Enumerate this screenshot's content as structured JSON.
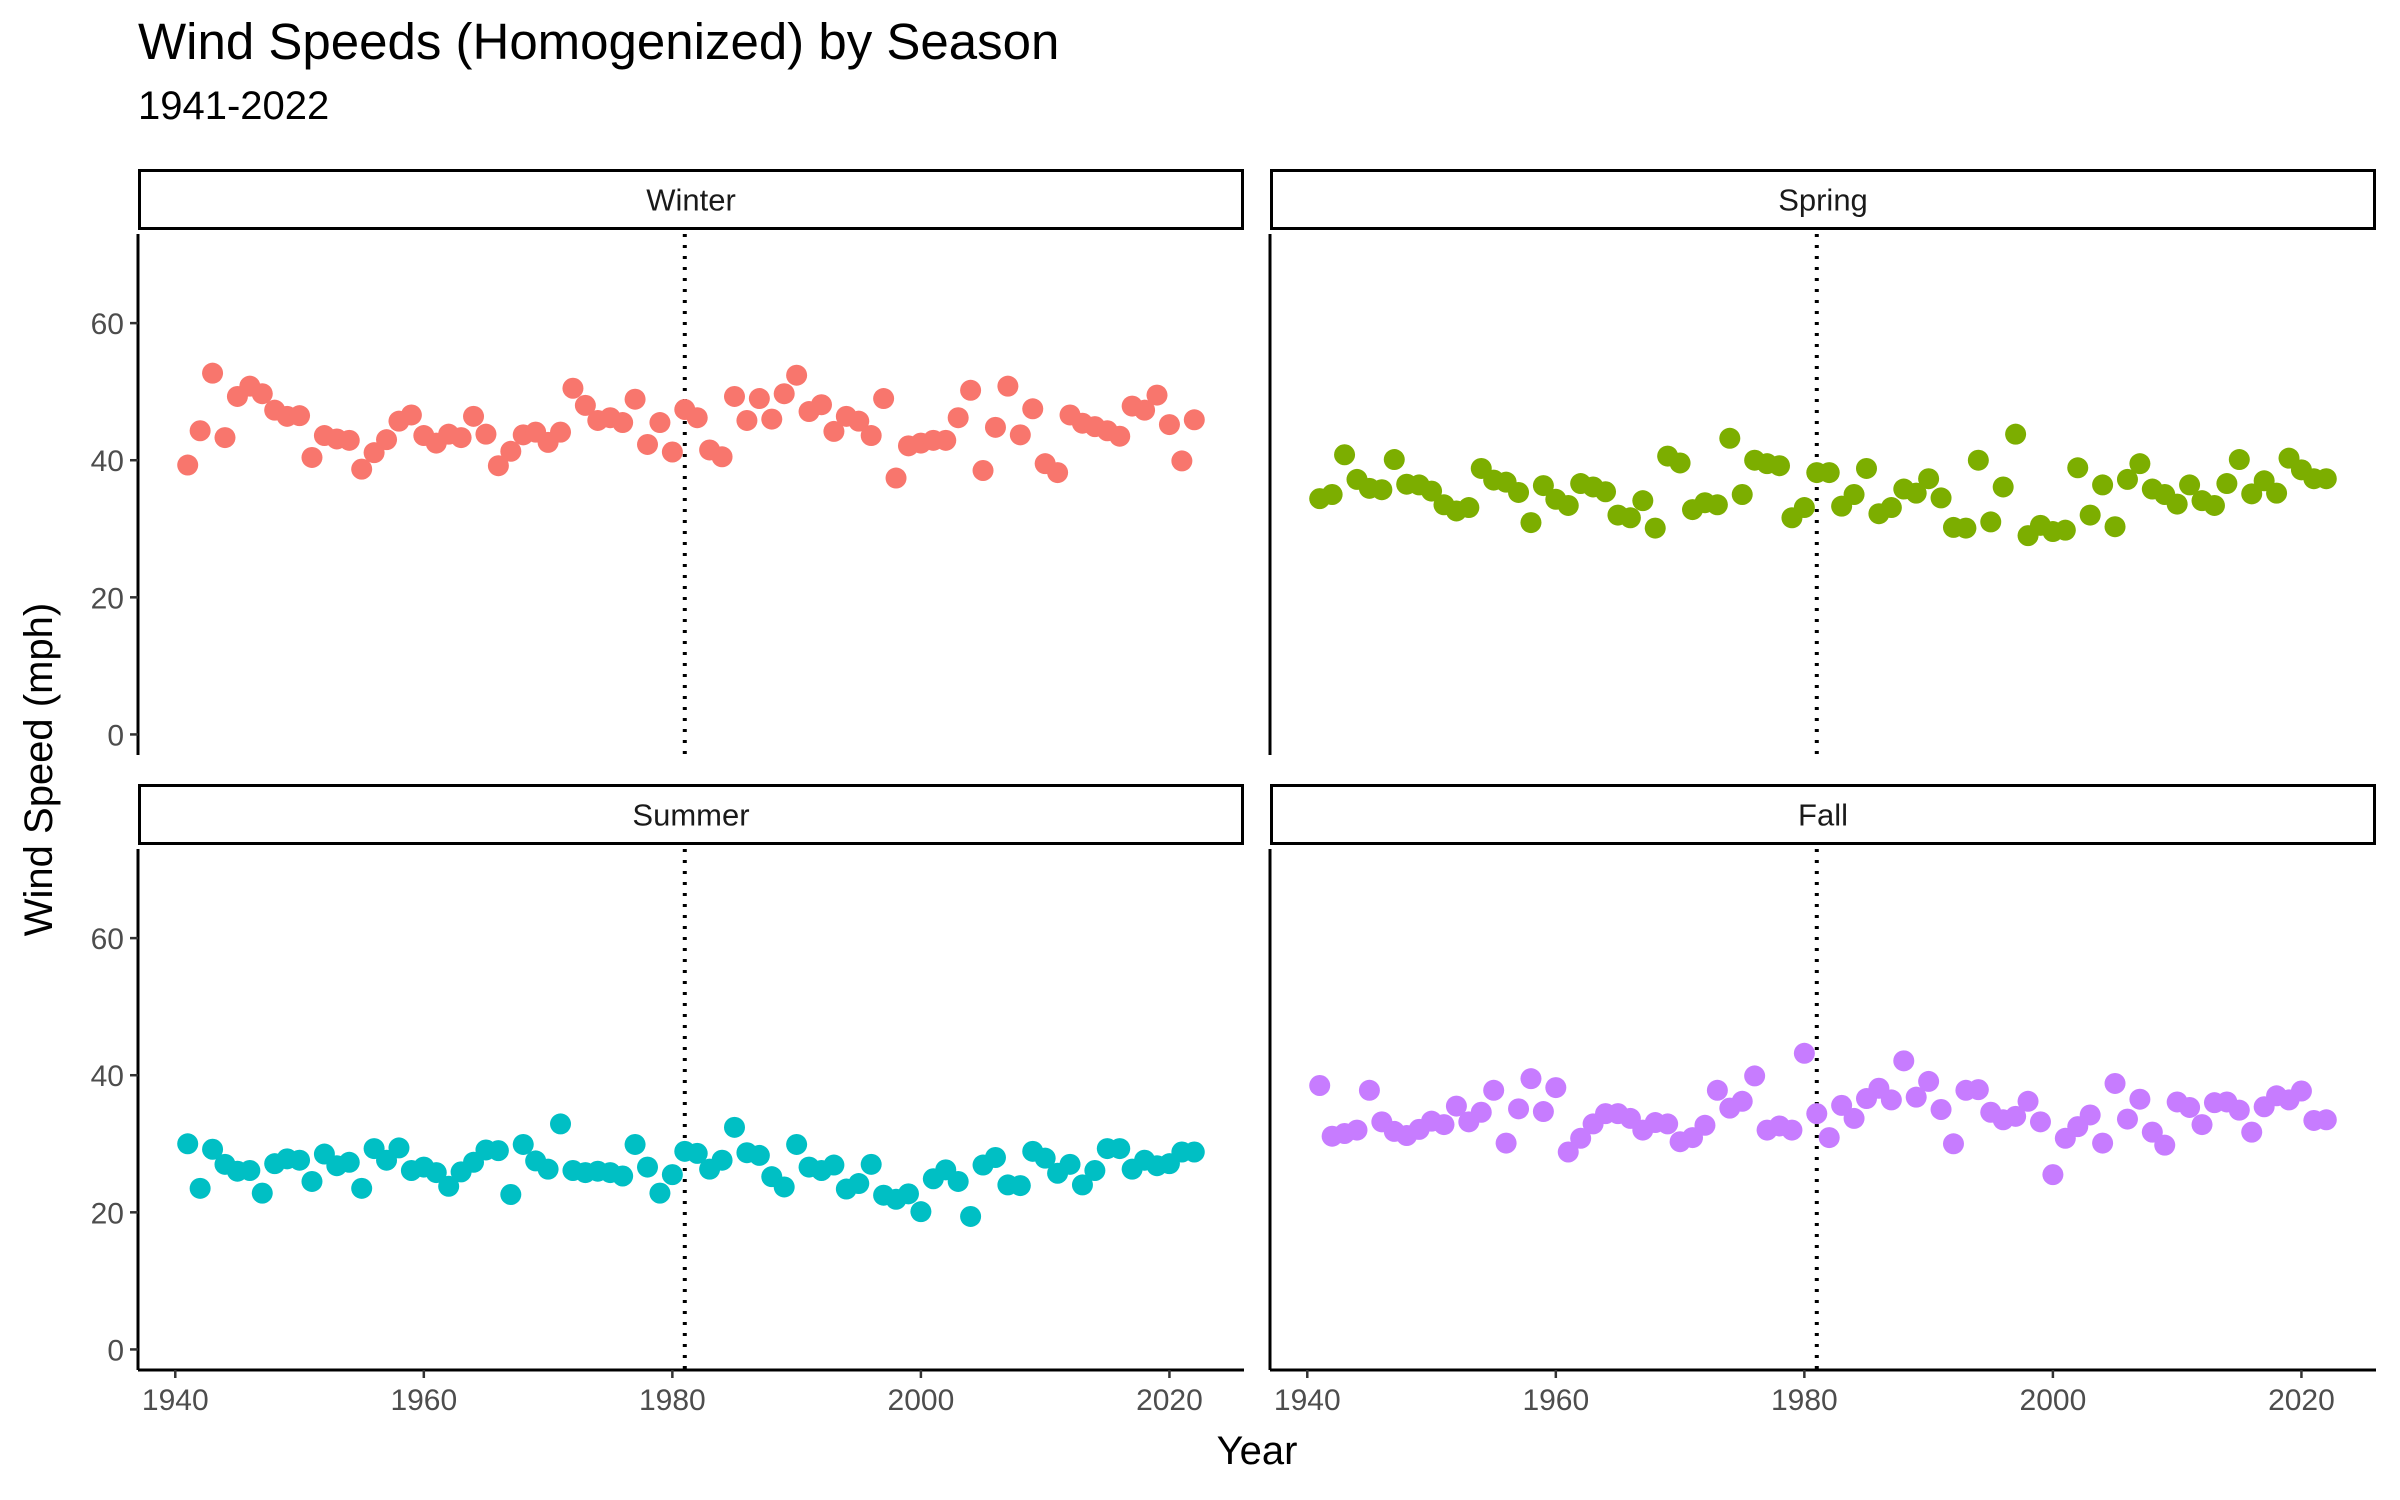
{
  "chart_data": {
    "type": "scatter",
    "title": "Wind Speeds (Homogenized) by Season",
    "subtitle": "1941-2022",
    "xlabel": "Year",
    "ylabel": "Wind Speed (mph)",
    "xlim": [
      1937,
      2026
    ],
    "ylim": [
      -3,
      73
    ],
    "x_ticks": [
      1940,
      1960,
      1980,
      2000,
      2020
    ],
    "y_ticks": [
      0,
      20,
      40,
      60
    ],
    "reference_line": {
      "x": 1981,
      "style": "dotted"
    },
    "grid": false,
    "legend": "none",
    "facets": [
      {
        "name": "Winter",
        "color": "#F8766D",
        "years": [
          1941,
          1942,
          1943,
          1944,
          1945,
          1946,
          1947,
          1948,
          1949,
          1950,
          1951,
          1952,
          1953,
          1954,
          1955,
          1956,
          1957,
          1958,
          1959,
          1960,
          1961,
          1962,
          1963,
          1964,
          1965,
          1966,
          1967,
          1968,
          1969,
          1970,
          1971,
          1972,
          1973,
          1974,
          1975,
          1976,
          1977,
          1978,
          1979,
          1980,
          1981,
          1982,
          1983,
          1984,
          1985,
          1986,
          1987,
          1988,
          1989,
          1990,
          1991,
          1992,
          1993,
          1994,
          1995,
          1996,
          1997,
          1998,
          1999,
          2000,
          2001,
          2002,
          2003,
          2004,
          2005,
          2006,
          2007,
          2008,
          2009,
          2010,
          2011,
          2012,
          2013,
          2014,
          2015,
          2016,
          2017,
          2018,
          2019,
          2020,
          2021,
          2022
        ],
        "values": [
          39.3,
          44.3,
          52.7,
          43.3,
          49.3,
          50.8,
          49.7,
          47.3,
          46.4,
          46.5,
          40.4,
          43.6,
          43.1,
          42.9,
          38.7,
          41.1,
          43.0,
          45.7,
          46.6,
          43.6,
          42.5,
          43.8,
          43.3,
          46.4,
          43.8,
          39.2,
          41.3,
          43.7,
          44.1,
          42.6,
          44.1,
          50.5,
          48.0,
          45.8,
          46.2,
          45.5,
          48.9,
          42.3,
          45.5,
          41.2,
          47.4,
          46.2,
          41.5,
          40.5,
          49.3,
          45.8,
          49.0,
          46.0,
          49.7,
          52.4,
          47.1,
          48.1,
          44.2,
          46.4,
          45.7,
          43.6,
          49.0,
          37.4,
          42.1,
          42.5,
          42.9,
          42.9,
          46.2,
          50.2,
          38.5,
          44.8,
          50.8,
          43.7,
          47.5,
          39.5,
          38.2,
          46.6,
          45.4,
          44.9,
          44.3,
          43.5,
          47.9,
          47.3,
          49.5,
          45.2,
          39.9,
          45.9
        ]
      },
      {
        "name": "Spring",
        "color": "#7CAE00",
        "years": [
          1941,
          1942,
          1943,
          1944,
          1945,
          1946,
          1947,
          1948,
          1949,
          1950,
          1951,
          1952,
          1953,
          1954,
          1955,
          1956,
          1957,
          1958,
          1959,
          1960,
          1961,
          1962,
          1963,
          1964,
          1965,
          1966,
          1967,
          1968,
          1969,
          1970,
          1971,
          1972,
          1973,
          1974,
          1975,
          1976,
          1977,
          1978,
          1979,
          1980,
          1981,
          1982,
          1983,
          1984,
          1985,
          1986,
          1987,
          1988,
          1989,
          1990,
          1991,
          1992,
          1993,
          1994,
          1995,
          1996,
          1997,
          1998,
          1999,
          2000,
          2001,
          2002,
          2003,
          2004,
          2005,
          2006,
          2007,
          2008,
          2009,
          2010,
          2011,
          2012,
          2013,
          2014,
          2015,
          2016,
          2017,
          2018,
          2019,
          2020,
          2021,
          2022
        ],
        "values": [
          34.4,
          35.0,
          40.8,
          37.2,
          35.9,
          35.7,
          40.1,
          36.5,
          36.4,
          35.5,
          33.5,
          32.6,
          33.1,
          38.8,
          37.1,
          36.8,
          35.3,
          30.9,
          36.3,
          34.3,
          33.4,
          36.6,
          36.1,
          35.4,
          32.0,
          31.6,
          34.1,
          30.1,
          40.6,
          39.6,
          32.8,
          33.8,
          33.5,
          43.2,
          35.0,
          40.0,
          39.5,
          39.2,
          31.6,
          33.1,
          38.2,
          38.2,
          33.3,
          35.0,
          38.8,
          32.2,
          33.1,
          35.8,
          35.2,
          37.3,
          34.5,
          30.2,
          30.1,
          40.0,
          31.0,
          36.1,
          43.8,
          29.0,
          30.5,
          29.6,
          29.8,
          38.9,
          32.0,
          36.4,
          30.3,
          37.2,
          39.5,
          35.8,
          35.0,
          33.6,
          36.4,
          34.1,
          33.4,
          36.6,
          40.1,
          35.1,
          37.0,
          35.2,
          40.3,
          38.6,
          37.3,
          37.3
        ]
      },
      {
        "name": "Summer",
        "color": "#00BFC4",
        "years": [
          1941,
          1942,
          1943,
          1944,
          1945,
          1946,
          1947,
          1948,
          1949,
          1950,
          1951,
          1952,
          1953,
          1954,
          1955,
          1956,
          1957,
          1958,
          1959,
          1960,
          1961,
          1962,
          1963,
          1964,
          1965,
          1966,
          1967,
          1968,
          1969,
          1970,
          1971,
          1972,
          1973,
          1974,
          1975,
          1976,
          1977,
          1978,
          1979,
          1980,
          1981,
          1982,
          1983,
          1984,
          1985,
          1986,
          1987,
          1988,
          1989,
          1990,
          1991,
          1992,
          1993,
          1994,
          1995,
          1996,
          1997,
          1998,
          1999,
          2000,
          2001,
          2002,
          2003,
          2004,
          2005,
          2006,
          2007,
          2008,
          2009,
          2010,
          2011,
          2012,
          2013,
          2014,
          2015,
          2016,
          2017,
          2018,
          2019,
          2020,
          2021,
          2022
        ],
        "values": [
          30.0,
          23.5,
          29.2,
          27.0,
          26.0,
          26.1,
          22.8,
          27.1,
          27.8,
          27.6,
          24.5,
          28.5,
          26.8,
          27.3,
          23.5,
          29.3,
          27.6,
          29.4,
          26.1,
          26.6,
          25.8,
          23.8,
          25.9,
          27.3,
          29.1,
          29.0,
          22.6,
          29.9,
          27.5,
          26.3,
          32.9,
          26.1,
          25.8,
          26.0,
          25.8,
          25.3,
          29.9,
          26.6,
          22.8,
          25.5,
          28.9,
          28.6,
          26.3,
          27.6,
          32.4,
          28.7,
          28.3,
          25.2,
          23.7,
          29.9,
          26.6,
          26.1,
          26.9,
          23.4,
          24.2,
          27.0,
          22.5,
          21.9,
          22.7,
          20.1,
          24.9,
          26.2,
          24.5,
          19.4,
          26.9,
          28.0,
          24.0,
          23.9,
          28.9,
          27.9,
          25.7,
          27.0,
          24.0,
          26.1,
          29.3,
          29.3,
          26.3,
          27.6,
          26.8,
          27.1,
          28.8,
          28.8
        ]
      },
      {
        "name": "Fall",
        "color": "#C77CFF",
        "years": [
          1941,
          1942,
          1943,
          1944,
          1945,
          1946,
          1947,
          1948,
          1949,
          1950,
          1951,
          1952,
          1953,
          1954,
          1955,
          1956,
          1957,
          1958,
          1959,
          1960,
          1961,
          1962,
          1963,
          1964,
          1965,
          1966,
          1967,
          1968,
          1969,
          1970,
          1971,
          1972,
          1973,
          1974,
          1975,
          1976,
          1977,
          1978,
          1979,
          1980,
          1981,
          1982,
          1983,
          1984,
          1985,
          1986,
          1987,
          1988,
          1989,
          1990,
          1991,
          1992,
          1993,
          1994,
          1995,
          1996,
          1997,
          1998,
          1999,
          2000,
          2001,
          2002,
          2003,
          2004,
          2005,
          2006,
          2007,
          2008,
          2009,
          2010,
          2011,
          2012,
          2013,
          2014,
          2015,
          2016,
          2017,
          2018,
          2019,
          2020,
          2021,
          2022
        ],
        "values": [
          38.5,
          31.1,
          31.5,
          32.0,
          37.8,
          33.2,
          31.8,
          31.2,
          32.1,
          33.3,
          32.8,
          35.5,
          33.2,
          34.6,
          37.8,
          30.1,
          35.1,
          39.5,
          34.7,
          38.2,
          28.8,
          30.8,
          32.9,
          34.4,
          34.4,
          33.7,
          32.0,
          33.1,
          32.9,
          30.3,
          30.9,
          32.7,
          37.8,
          35.2,
          36.2,
          39.9,
          32.0,
          32.6,
          32.0,
          43.2,
          34.4,
          30.9,
          35.6,
          33.7,
          36.6,
          38.1,
          36.4,
          42.1,
          36.8,
          39.1,
          35.0,
          30.0,
          37.8,
          37.9,
          34.6,
          33.5,
          34.0,
          36.2,
          33.2,
          25.5,
          30.8,
          32.5,
          34.2,
          30.1,
          38.8,
          33.6,
          36.5,
          31.7,
          29.8,
          36.1,
          35.3,
          32.8,
          36.0,
          36.1,
          34.9,
          31.7,
          35.4,
          37.0,
          36.4,
          37.7,
          33.4,
          33.5
        ]
      }
    ]
  }
}
